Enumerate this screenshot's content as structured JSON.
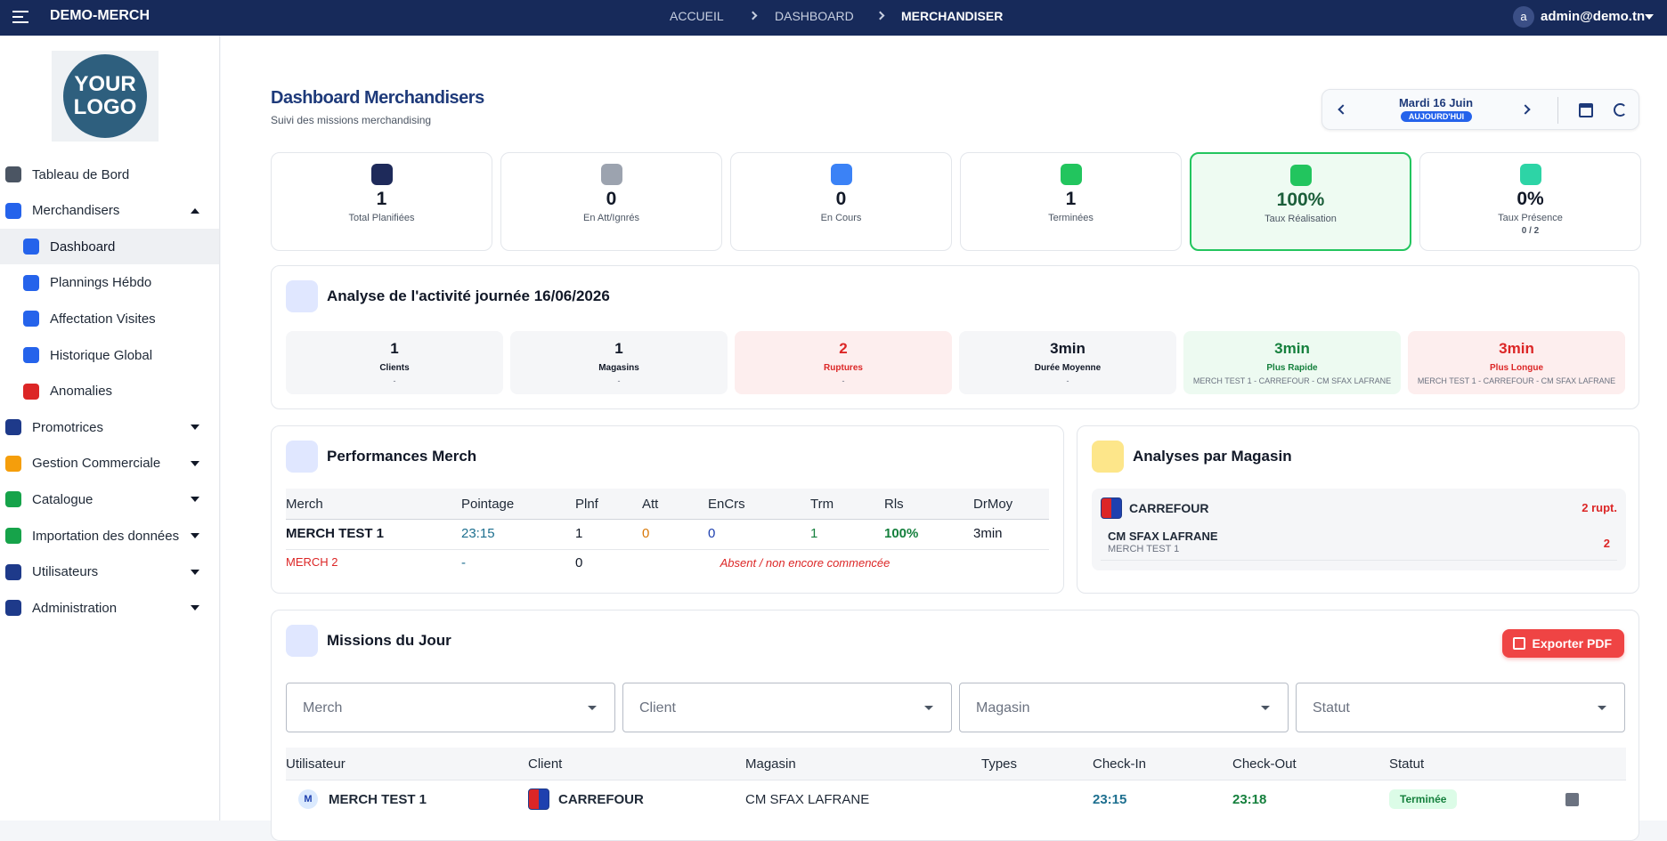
{
  "topbar": {
    "brand": "DEMO-MERCH",
    "breadcrumb": [
      "ACCUEIL",
      "DASHBOARD",
      "MERCHANDISER"
    ],
    "user_initial": "a",
    "user": "admin@demo.tn"
  },
  "sidebar": {
    "logo": [
      "YOUR",
      "LOGO"
    ],
    "items": [
      {
        "label": "Tableau de Bord",
        "icon": "#4b5563"
      },
      {
        "label": "Merchandisers",
        "icon": "#2563eb",
        "open": true,
        "children": [
          {
            "label": "Dashboard",
            "icon": "#2563eb",
            "active": true
          },
          {
            "label": "Plannings Hébdo",
            "icon": "#2563eb"
          },
          {
            "label": "Affectation Visites",
            "icon": "#2563eb"
          },
          {
            "label": "Historique Global",
            "icon": "#2563eb"
          },
          {
            "label": "Anomalies",
            "icon": "#dc2626"
          }
        ]
      },
      {
        "label": "Promotrices",
        "icon": "#1e3a8a",
        "open": false
      },
      {
        "label": "Gestion Commerciale",
        "icon": "#f59e0b",
        "open": false
      },
      {
        "label": "Catalogue",
        "icon": "#16a34a",
        "open": false
      },
      {
        "label": "Importation des données",
        "icon": "#16a34a",
        "open": false
      },
      {
        "label": "Utilisateurs",
        "icon": "#1e3a8a",
        "open": false
      },
      {
        "label": "Administration",
        "icon": "#1e3a8a",
        "open": false
      }
    ]
  },
  "header": {
    "title": "Dashboard Merchandisers",
    "subtitle": "Suivi des missions merchandising",
    "date": "Mardi 16 Juin",
    "date_badge": "AUJOURD'HUI"
  },
  "kpis": [
    {
      "value": "1",
      "label": "Total Planifiées",
      "icon": "#1e2a5a"
    },
    {
      "value": "0",
      "label": "En Att/Ignrés",
      "icon": "#9ca3af"
    },
    {
      "value": "0",
      "label": "En Cours",
      "icon": "#3b82f6"
    },
    {
      "value": "1",
      "label": "Terminées",
      "icon": "#22c55e"
    },
    {
      "value": "100%",
      "label": "Taux Réalisation",
      "icon": "#22c55e",
      "highlight": true
    },
    {
      "value": "0%",
      "label": "Taux Présence",
      "sub": "0 / 2",
      "icon": "#2dd4a6"
    }
  ],
  "activity": {
    "title": "Analyse de l'activité journée 16/06/2026",
    "stats": [
      {
        "value": "1",
        "label": "Clients",
        "sub": "-",
        "tone": "neutral"
      },
      {
        "value": "1",
        "label": "Magasins",
        "sub": "-",
        "tone": "neutral"
      },
      {
        "value": "2",
        "label": "Ruptures",
        "sub": "-",
        "tone": "bad"
      },
      {
        "value": "3min",
        "label": "Durée Moyenne",
        "sub": "-",
        "tone": "neutral"
      },
      {
        "value": "3min",
        "label": "Plus Rapide",
        "sub": "MERCH TEST 1 - CARREFOUR - CM SFAX LAFRANE",
        "tone": "good"
      },
      {
        "value": "3min",
        "label": "Plus Longue",
        "sub": "MERCH TEST 1 - CARREFOUR - CM SFAX LAFRANE",
        "tone": "bad"
      }
    ]
  },
  "performance": {
    "title": "Performances Merch",
    "columns": [
      "Merch",
      "Pointage",
      "Plnf",
      "Att",
      "EnCrs",
      "Trm",
      "Rls",
      "DrMoy"
    ],
    "rows": [
      {
        "cells": [
          "MERCH TEST 1",
          "23:15",
          "1",
          "0",
          "0",
          "1",
          "100%",
          "3min"
        ]
      },
      {
        "cells": [
          "MERCH 2",
          "-",
          "0"
        ],
        "note": "Absent / non encore commencée"
      }
    ]
  },
  "magasins": {
    "title": "Analyses par Magasin",
    "client": "CARREFOUR",
    "client_count": "2 rupt.",
    "stores": [
      {
        "name": "CM SFAX LAFRANE",
        "merch": "MERCH TEST 1",
        "count": "2"
      }
    ]
  },
  "missions": {
    "title": "Missions du Jour",
    "export": "Exporter PDF",
    "filters": [
      "Merch",
      "Client",
      "Magasin",
      "Statut"
    ],
    "columns": [
      "Utilisateur",
      "Client",
      "Magasin",
      "Types",
      "Check-In",
      "Check-Out",
      "Statut"
    ],
    "rows": [
      {
        "user_initial": "M",
        "user": "MERCH TEST 1",
        "client": "CARREFOUR",
        "magasin": "CM SFAX LAFRANE",
        "check_in": "23:15",
        "check_out": "23:18",
        "statut": "Terminée"
      }
    ]
  }
}
